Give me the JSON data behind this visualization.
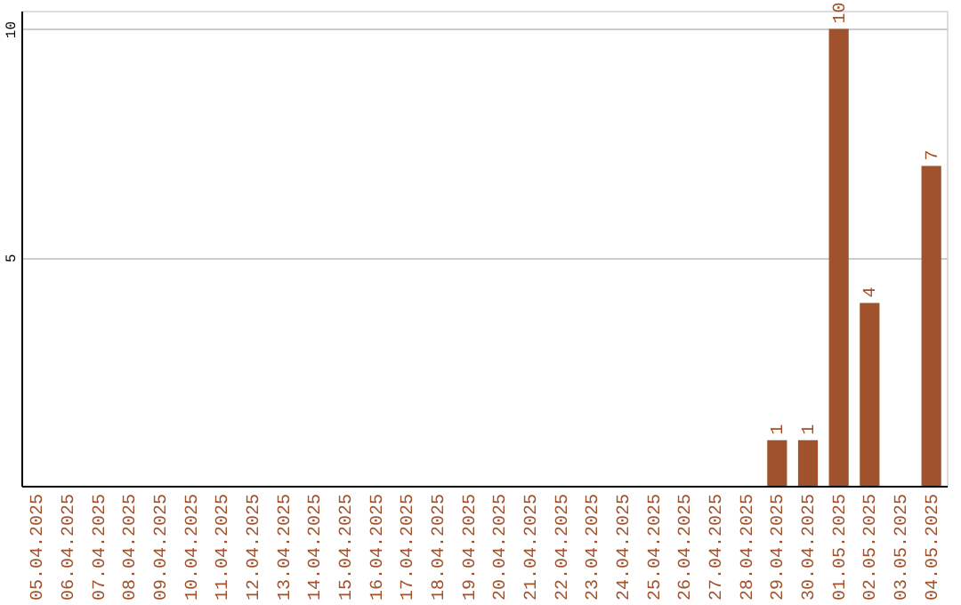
{
  "chart_data": {
    "type": "bar",
    "categories": [
      "05.04.2025",
      "06.04.2025",
      "07.04.2025",
      "08.04.2025",
      "09.04.2025",
      "10.04.2025",
      "11.04.2025",
      "12.04.2025",
      "13.04.2025",
      "14.04.2025",
      "15.04.2025",
      "16.04.2025",
      "17.04.2025",
      "18.04.2025",
      "19.04.2025",
      "20.04.2025",
      "21.04.2025",
      "22.04.2025",
      "23.04.2025",
      "24.04.2025",
      "25.04.2025",
      "26.04.2025",
      "27.04.2025",
      "28.04.2025",
      "29.04.2025",
      "30.04.2025",
      "01.05.2025",
      "02.05.2025",
      "03.05.2025",
      "04.05.2025"
    ],
    "values": [
      0,
      0,
      0,
      0,
      0,
      0,
      0,
      0,
      0,
      0,
      0,
      0,
      0,
      0,
      0,
      0,
      0,
      0,
      0,
      0,
      0,
      0,
      0,
      0,
      1,
      1,
      10,
      4,
      0,
      7
    ],
    "value_labels": [
      null,
      null,
      null,
      null,
      null,
      null,
      null,
      null,
      null,
      null,
      null,
      null,
      null,
      null,
      null,
      null,
      null,
      null,
      null,
      null,
      null,
      null,
      null,
      null,
      "1",
      "1",
      "10",
      "4",
      null,
      "7"
    ],
    "color": "#a0522d",
    "ylim": [
      0,
      10.4
    ],
    "yticks": [
      5,
      10
    ],
    "grid": "y"
  }
}
